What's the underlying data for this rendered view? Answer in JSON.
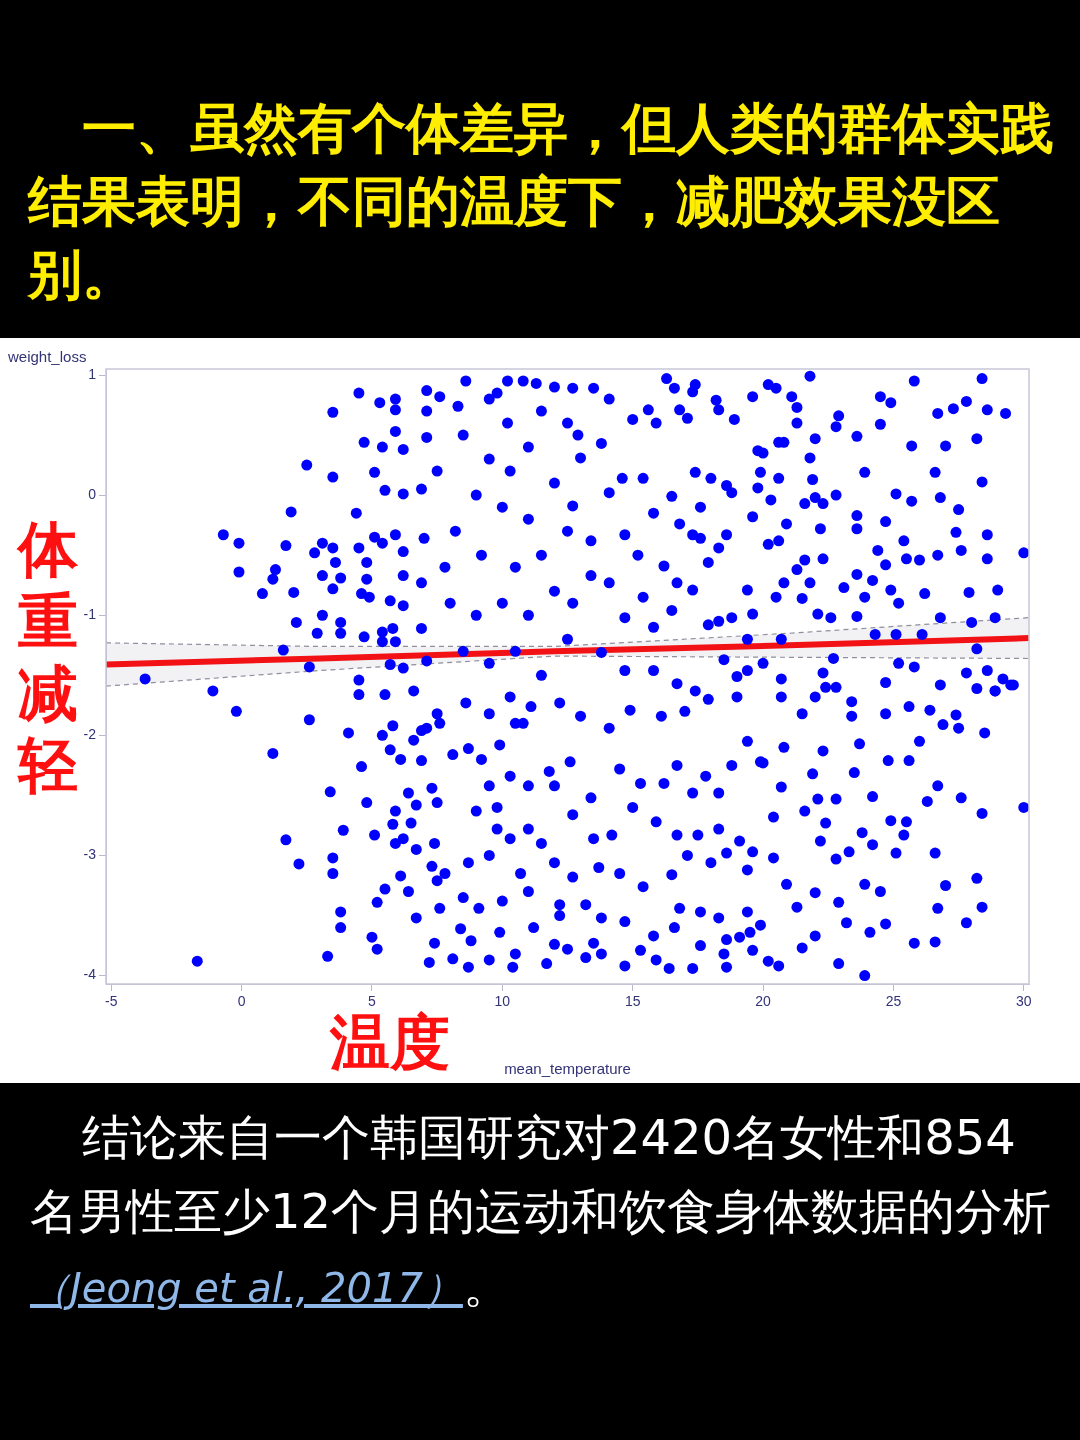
{
  "chart_data": {
    "type": "scatter",
    "title": "一、虽然有个体差异，但人类的群体实践结果表明，不同的温度下，减肥效果没区别。",
    "xlabel": "mean_temperature",
    "ylabel": "weight_loss",
    "annotations": [
      "体重减轻",
      "温度",
      "结论来自一个韩国研究对2420名女性和854名男性至少12个月的运动和饮食身体数据的分析",
      "（Jeong et al., 2017）",
      "。"
    ],
    "xlim": [
      -5.2,
      30.2
    ],
    "ylim": [
      -4.07,
      1.05
    ],
    "xticks": [
      -5,
      0,
      5,
      10,
      15,
      20,
      25,
      30
    ],
    "yticks": [
      -4,
      -3,
      -2,
      -1,
      0,
      1
    ],
    "grid": false,
    "legend": false,
    "marker": "circle",
    "series": [
      {
        "type": "scatter",
        "color": "#0000ff",
        "x": [
          -3.7,
          -1.1,
          -0.7,
          -0.1,
          -0.1,
          0.8,
          1.3,
          1.2,
          1.9,
          1.7,
          2.0,
          2.1,
          1.6,
          2.6,
          2.5,
          3.5,
          3.5,
          4.5,
          5.3,
          4.4,
          3.1,
          4.7,
          4.7,
          5.1,
          4.5,
          -0.2,
          2.6,
          1.2,
          1.7,
          2.2,
          -1.7,
          3.3,
          3.5,
          3.5,
          3.8,
          3.8,
          5.0,
          5.2,
          5.5,
          5.2,
          3.4,
          3.9,
          4.6,
          4.1,
          4.8,
          5.1,
          6.1,
          6.4,
          6.7,
          7.2,
          7.6,
          7.4,
          5.7,
          6.4,
          30.0,
          30.0,
          23.9,
          22.9,
          25.8,
          26.6,
          27.8,
          28.4,
          28.2,
          26.7,
          27.0,
          26.6,
          25.1,
          24.7,
          24.1,
          24.5,
          23.9,
          23.2,
          22.9,
          22.0,
          21.5,
          21.3,
          22.0,
          22.8,
          23.3,
          23.8,
          24.2,
          24.9,
          25.5,
          25.4,
          24.2,
          26.3,
          26.7,
          27.6,
          28.4,
          28.2,
          28.9,
          29.5,
          27.4,
          27.5,
          28.5,
          26.9,
          26.0,
          25.6,
          24.8,
          24.7,
          26.4,
          25.6,
          23.4,
          23.4,
          23.7,
          23.5,
          22.3,
          21.9,
          22.1,
          22.8,
          22.4,
          22.2,
          21.6,
          20.4,
          20.0,
          20.7,
          20.8,
          20.4,
          20.9,
          19.4,
          19.6,
          19.9,
          20.2,
          20.6,
          18.6,
          18.5,
          17.3,
          16.4,
          14.7,
          13.2,
          19.6,
          19.1,
          19.5,
          18.6,
          17.6,
          16.6,
          15.3,
          15.9,
          13.8,
          13.5,
          12.5,
          12.0,
          11.7,
          21.8,
          25.8,
          28.4,
          28.6,
          29.3,
          27.8,
          26.7,
          27.3,
          28.2,
          27.0,
          26.6,
          26.8,
          27.5,
          28.4,
          27.4,
          27.6,
          28.6,
          28.6,
          27.9,
          29.0,
          26.7,
          26.0,
          25.5,
          25.4,
          26.2,
          25.7,
          25.7,
          24.5,
          24.5,
          24.9,
          23.9,
          23.6,
          22.8,
          22.9,
          22.8,
          23.6,
          23.6,
          24.7,
          24.4,
          24.7,
          25.1,
          24.2,
          23.6,
          23.1,
          23.9,
          24.9,
          25.2,
          22.2,
          22.3,
          22.0,
          21.9,
          21.8,
          22.0,
          22.3,
          21.6,
          21.3,
          21.3,
          21.1,
          21.6,
          21.3,
          21.8,
          21.5,
          22.1,
          22.6,
          23.6,
          24.3,
          25.1,
          26.1,
          26.8,
          28.0,
          28.9,
          28.2,
          25.2,
          25.8,
          22.7,
          22.3,
          22.8,
          26.8,
          27.8,
          28.6,
          29.2,
          29.6,
          28.9,
          24.7,
          20.2,
          20.5,
          19.6,
          18.9,
          18.2,
          18.3,
          17.4,
          17.3,
          16.3,
          16.6,
          16.8,
          17.1,
          15.6,
          15.9,
          15.0,
          14.1,
          13.5,
          12.7,
          12.0,
          19.8,
          20.0,
          20.6,
          20.8,
          19.9,
          19.8,
          20.3,
          20.6,
          19.6,
          20.2,
          20.6,
          20.9,
          20.8,
          20.5,
          19.6,
          19.4,
          18.8,
          18.3,
          17.9,
          20.7,
          19.4,
          18.5,
          19.4,
          20.7,
          20.0,
          22.4,
          22.0,
          19.0,
          18.6,
          18.3,
          17.6,
          17.9,
          17.3,
          16.8,
          16.5,
          17.4,
          18.0,
          18.6,
          18.8,
          17.6,
          16.2,
          16.7,
          17.3,
          16.5,
          15.8,
          15.4,
          14.7,
          15.2,
          14.7,
          15.8,
          15.4,
          14.6,
          14.1,
          13.8,
          13.0,
          12.7,
          13.4,
          13.4,
          12.7,
          14.1,
          13.8,
          14.7,
          15.8,
          16.7,
          17.4,
          12.2,
          13.0,
          14.1,
          14.9,
          16.1,
          17.0,
          17.9,
          19.0,
          20.7,
          21.5,
          19.4,
          19.9,
          18.8,
          18.3,
          17.8,
          17.3,
          16.7,
          16.2,
          15.3,
          14.5,
          13.4,
          12.6,
          12.0,
          12.7,
          13.5,
          14.2,
          15.0,
          15.9,
          16.7,
          17.5,
          18.3,
          19.1,
          18.6,
          18.0,
          17.1,
          16.5,
          15.4,
          14.5,
          13.7,
          12.7,
          12.0,
          12.2,
          13.2,
          13.8,
          14.7,
          15.8,
          16.8,
          17.6,
          18.3,
          19.4,
          8.6,
          10.2,
          10.8,
          7.1,
          7.6,
          5.9,
          5.9,
          7.1,
          8.3,
          9.5,
          5.9,
          7.1,
          6.2,
          5.4,
          5.5,
          6.2,
          6.9,
          5.1,
          5.4,
          5.9,
          6.2,
          7.0,
          4.5,
          3.1,
          2.8,
          3.5,
          3.6,
          3.1,
          3.8,
          3.5,
          4.8,
          4.8,
          4.6,
          4.9,
          5.7,
          6.2,
          6.2,
          6.9,
          2.9,
          3.8,
          3.8,
          5.4,
          5.8,
          6.9,
          5.4,
          5.9,
          5.7,
          6.2,
          7.1,
          5.5,
          6.6,
          4.5,
          5.4,
          6.6,
          6.9,
          5.8,
          6.1,
          6.9,
          7.1,
          7.5,
          7.6,
          7.3,
          7.5,
          6.7,
          5.9,
          5.8,
          6.5,
          6.2,
          5.9,
          6.7,
          7.4,
          7.3,
          7.8,
          7.5,
          8.7,
          9.5,
          8.5,
          9.1,
          8.4,
          8.8,
          9.5,
          8.1,
          8.7,
          10.4,
          10.5,
          9.9,
          10.0,
          10.7,
          11.0,
          9.8,
          10.3,
          11.0,
          9.0,
          9.5,
          10.3,
          11.0,
          8.1,
          8.7,
          9.2,
          9.9,
          10.5,
          9.5,
          8.6,
          10.3,
          11.1,
          8.5,
          9.5,
          10.2,
          11.0,
          11.5,
          12.5,
          9.0,
          10.0,
          11.0,
          12.0,
          8.2,
          9.2,
          10.5,
          11.5,
          12.5,
          8.0,
          9.0,
          10.0,
          11.0,
          12.0,
          8.5,
          9.5,
          10.5,
          11.5,
          12.5,
          7.5,
          7.8,
          10.8,
          11.8,
          9.8,
          11.5,
          12.2,
          11.2,
          10.3,
          9.8,
          11.3,
          12.9
        ],
        "values": [
          -1.53,
          -1.63,
          -0.33,
          -0.4,
          -0.64,
          -0.82,
          -0.62,
          -0.7,
          -0.14,
          -0.42,
          -0.81,
          -1.06,
          -1.29,
          -1.43,
          0.25,
          0.69,
          0.15,
          0.85,
          0.77,
          -0.15,
          -1.0,
          -1.18,
          0.44,
          0.19,
          -1.54,
          -1.8,
          -1.87,
          -2.15,
          -2.87,
          -3.07,
          -3.88,
          -3.84,
          -3.02,
          -3.15,
          -3.47,
          -3.6,
          -3.68,
          -3.78,
          -3.28,
          -3.39,
          -2.47,
          -2.79,
          -2.26,
          -1.98,
          -2.56,
          -2.83,
          -3.17,
          -3.3,
          -3.52,
          -3.89,
          -3.44,
          -3.73,
          -2.12,
          -2.48,
          -2.6,
          -0.48,
          -4.0,
          -3.9,
          -3.73,
          -3.72,
          -3.56,
          -3.43,
          -3.19,
          -3.44,
          -3.25,
          -2.98,
          -2.98,
          -3.57,
          -3.64,
          -3.3,
          -3.24,
          -3.56,
          -3.39,
          -3.67,
          -3.77,
          -3.43,
          -3.31,
          -3.03,
          -2.97,
          -2.81,
          -2.91,
          -2.71,
          -2.72,
          -2.83,
          -2.51,
          -2.55,
          -2.42,
          -2.52,
          -2.65,
          -1.61,
          -1.63,
          -1.58,
          -1.83,
          -1.94,
          -1.98,
          -1.91,
          -2.05,
          -2.21,
          -2.21,
          -1.82,
          -1.79,
          -1.76,
          -1.72,
          -1.84,
          -2.07,
          -2.31,
          -2.13,
          -2.32,
          -2.53,
          -2.53,
          -2.73,
          -2.88,
          -2.63,
          -2.68,
          -2.23,
          -2.43,
          -2.1,
          -3.02,
          -3.24,
          -3.12,
          -2.97,
          -3.58,
          -3.88,
          -3.92,
          -3.93,
          -3.82,
          -3.94,
          -3.94,
          -3.92,
          -3.85,
          -3.79,
          -3.68,
          -3.64,
          -3.7,
          -3.75,
          -3.6,
          -3.79,
          -3.87,
          -3.82,
          -3.73,
          -3.78,
          -3.74,
          -3.9,
          0.99,
          0.95,
          0.97,
          0.71,
          0.68,
          0.78,
          0.68,
          0.72,
          0.47,
          0.41,
          0.19,
          -0.02,
          -0.12,
          0.11,
          -0.31,
          -0.46,
          -0.33,
          -0.53,
          -0.81,
          -0.79,
          -0.5,
          -0.54,
          -0.53,
          -0.38,
          -0.82,
          -0.05,
          0.41,
          0.59,
          0.82,
          0.77,
          0.19,
          0.49,
          0.57,
          0.66,
          0.0,
          -0.17,
          -0.28,
          -0.22,
          -0.46,
          -0.58,
          0.01,
          -0.71,
          -0.66,
          -0.77,
          -0.85,
          -0.79,
          -0.9,
          -0.28,
          -0.53,
          0.47,
          0.13,
          0.31,
          -0.02,
          -0.07,
          -0.07,
          0.6,
          0.73,
          0.82,
          -0.54,
          -0.62,
          -0.73,
          -0.86,
          -0.99,
          -1.02,
          -1.01,
          -1.16,
          -1.16,
          -1.16,
          -1.02,
          -1.06,
          -1.02,
          -1.28,
          -1.4,
          -1.43,
          -1.36,
          -1.48,
          -1.6,
          -1.58,
          -1.48,
          -1.46,
          -1.53,
          -1.58,
          -1.63,
          -1.56,
          0.92,
          0.89,
          0.82,
          0.63,
          0.79,
          0.71,
          0.92,
          0.86,
          0.97,
          0.89,
          0.71,
          0.64,
          0.71,
          0.6,
          0.63,
          0.8,
          0.89,
          0.89,
          0.9,
          0.37,
          0.35,
          0.44,
          0.44,
          0.19,
          0.06,
          -0.04,
          0.14,
          -0.18,
          -0.41,
          -0.38,
          -0.24,
          -0.73,
          -0.85,
          -0.99,
          -0.79,
          -1.02,
          -1.05,
          -1.08,
          -1.2,
          -1.2,
          -1.37,
          -1.46,
          -1.53,
          -1.4,
          -1.6,
          -1.68,
          -1.51,
          -0.33,
          -0.44,
          -0.36,
          -0.56,
          -0.33,
          -0.24,
          -0.01,
          0.19,
          0.14,
          0.08,
          0.02,
          -0.1,
          -0.59,
          -0.73,
          -0.79,
          -0.96,
          -1.1,
          -0.85,
          -1.02,
          -0.5,
          -0.33,
          -0.15,
          0.14,
          0.14,
          0.02,
          0.43,
          0.31,
          -0.09,
          -0.38,
          -0.67,
          -0.9,
          -0.73,
          -1.31,
          -1.46,
          -1.46,
          -1.57,
          -1.63,
          -1.73,
          -1.84,
          -1.94,
          -1.79,
          -1.84,
          -1.8,
          -1.7,
          -1.68,
          -1.68,
          -1.82,
          -2.05,
          -2.22,
          -2.25,
          -2.48,
          -2.34,
          -2.48,
          -2.25,
          -2.4,
          -2.4,
          -2.28,
          -2.52,
          -2.22,
          -2.42,
          -2.66,
          -2.86,
          -2.83,
          -2.6,
          -2.72,
          -2.83,
          -2.83,
          -2.78,
          -2.88,
          -2.98,
          -3.06,
          -3.0,
          -3.16,
          -3.26,
          -3.15,
          -3.1,
          -3.18,
          -3.06,
          -3.41,
          -3.41,
          -3.52,
          -3.55,
          -3.67,
          -3.44,
          -3.47,
          -3.52,
          -3.47,
          0.95,
          0.95,
          0.95,
          0.87,
          0.82,
          0.8,
          0.71,
          0.7,
          0.74,
          0.8,
          0.53,
          0.48,
          0.38,
          0.4,
          0.04,
          0.01,
          0.05,
          -0.35,
          -0.4,
          -0.33,
          -0.47,
          -0.36,
          -0.44,
          -0.4,
          -0.48,
          -0.44,
          -0.56,
          -0.67,
          -0.69,
          -0.78,
          -0.56,
          -0.7,
          -0.82,
          -0.85,
          -0.88,
          -0.92,
          -0.67,
          -0.73,
          -1.15,
          -1.15,
          -1.06,
          -1.14,
          -1.11,
          -1.11,
          -1.22,
          -1.22,
          -1.41,
          -1.44,
          -1.38,
          -1.66,
          -1.63,
          -1.66,
          -2.0,
          -2.04,
          -1.96,
          -1.92,
          -2.2,
          -2.21,
          -1.94,
          -1.82,
          -1.9,
          -2.44,
          -2.56,
          -2.58,
          -2.63,
          -2.74,
          -2.73,
          -2.86,
          -2.9,
          -2.95,
          -2.9,
          -3.09,
          -3.15,
          -3.21,
          -3.06,
          -3.0,
          -3.35,
          -3.44,
          -3.61,
          -3.71,
          -3.87,
          -3.86,
          -3.93,
          -3.93,
          -3.82,
          -3.64,
          -3.38,
          -3.15,
          -3.3,
          -2.78,
          -2.86,
          -2.78,
          -2.63,
          -2.42,
          -2.34,
          -2.42,
          -2.16,
          -2.11,
          -2.2,
          -2.08,
          -1.9,
          -1.82,
          -1.73,
          -1.68,
          -1.76,
          0.5,
          0.3,
          0.6,
          0.4,
          0.7,
          0.6,
          0.0,
          -0.1,
          -0.2,
          0.1,
          -0.3,
          -0.5,
          -0.6,
          -0.5,
          -0.3,
          -0.9,
          -1.0,
          -0.9,
          -1.0,
          -0.8,
          -1.3,
          -1.4,
          -1.3,
          -1.5,
          -1.2,
          0.2,
          -0.6,
          -1.9,
          -2.3,
          -2.6,
          -2.9,
          -3.5,
          -3.6,
          0.2,
          0.85,
          0.93,
          0.5
        ]
      },
      {
        "type": "line",
        "color": "#ff0000",
        "marker": "none",
        "x": [
          -5.2,
          3,
          12,
          21,
          30.2
        ],
        "values": [
          -1.41,
          -1.36,
          -1.3,
          -1.25,
          -1.19
        ],
        "lower": [
          -1.59,
          -1.46,
          -1.34,
          -1.35,
          -1.36
        ],
        "upper": [
          -1.23,
          -1.26,
          -1.26,
          -1.15,
          -1.02
        ]
      }
    ]
  }
}
